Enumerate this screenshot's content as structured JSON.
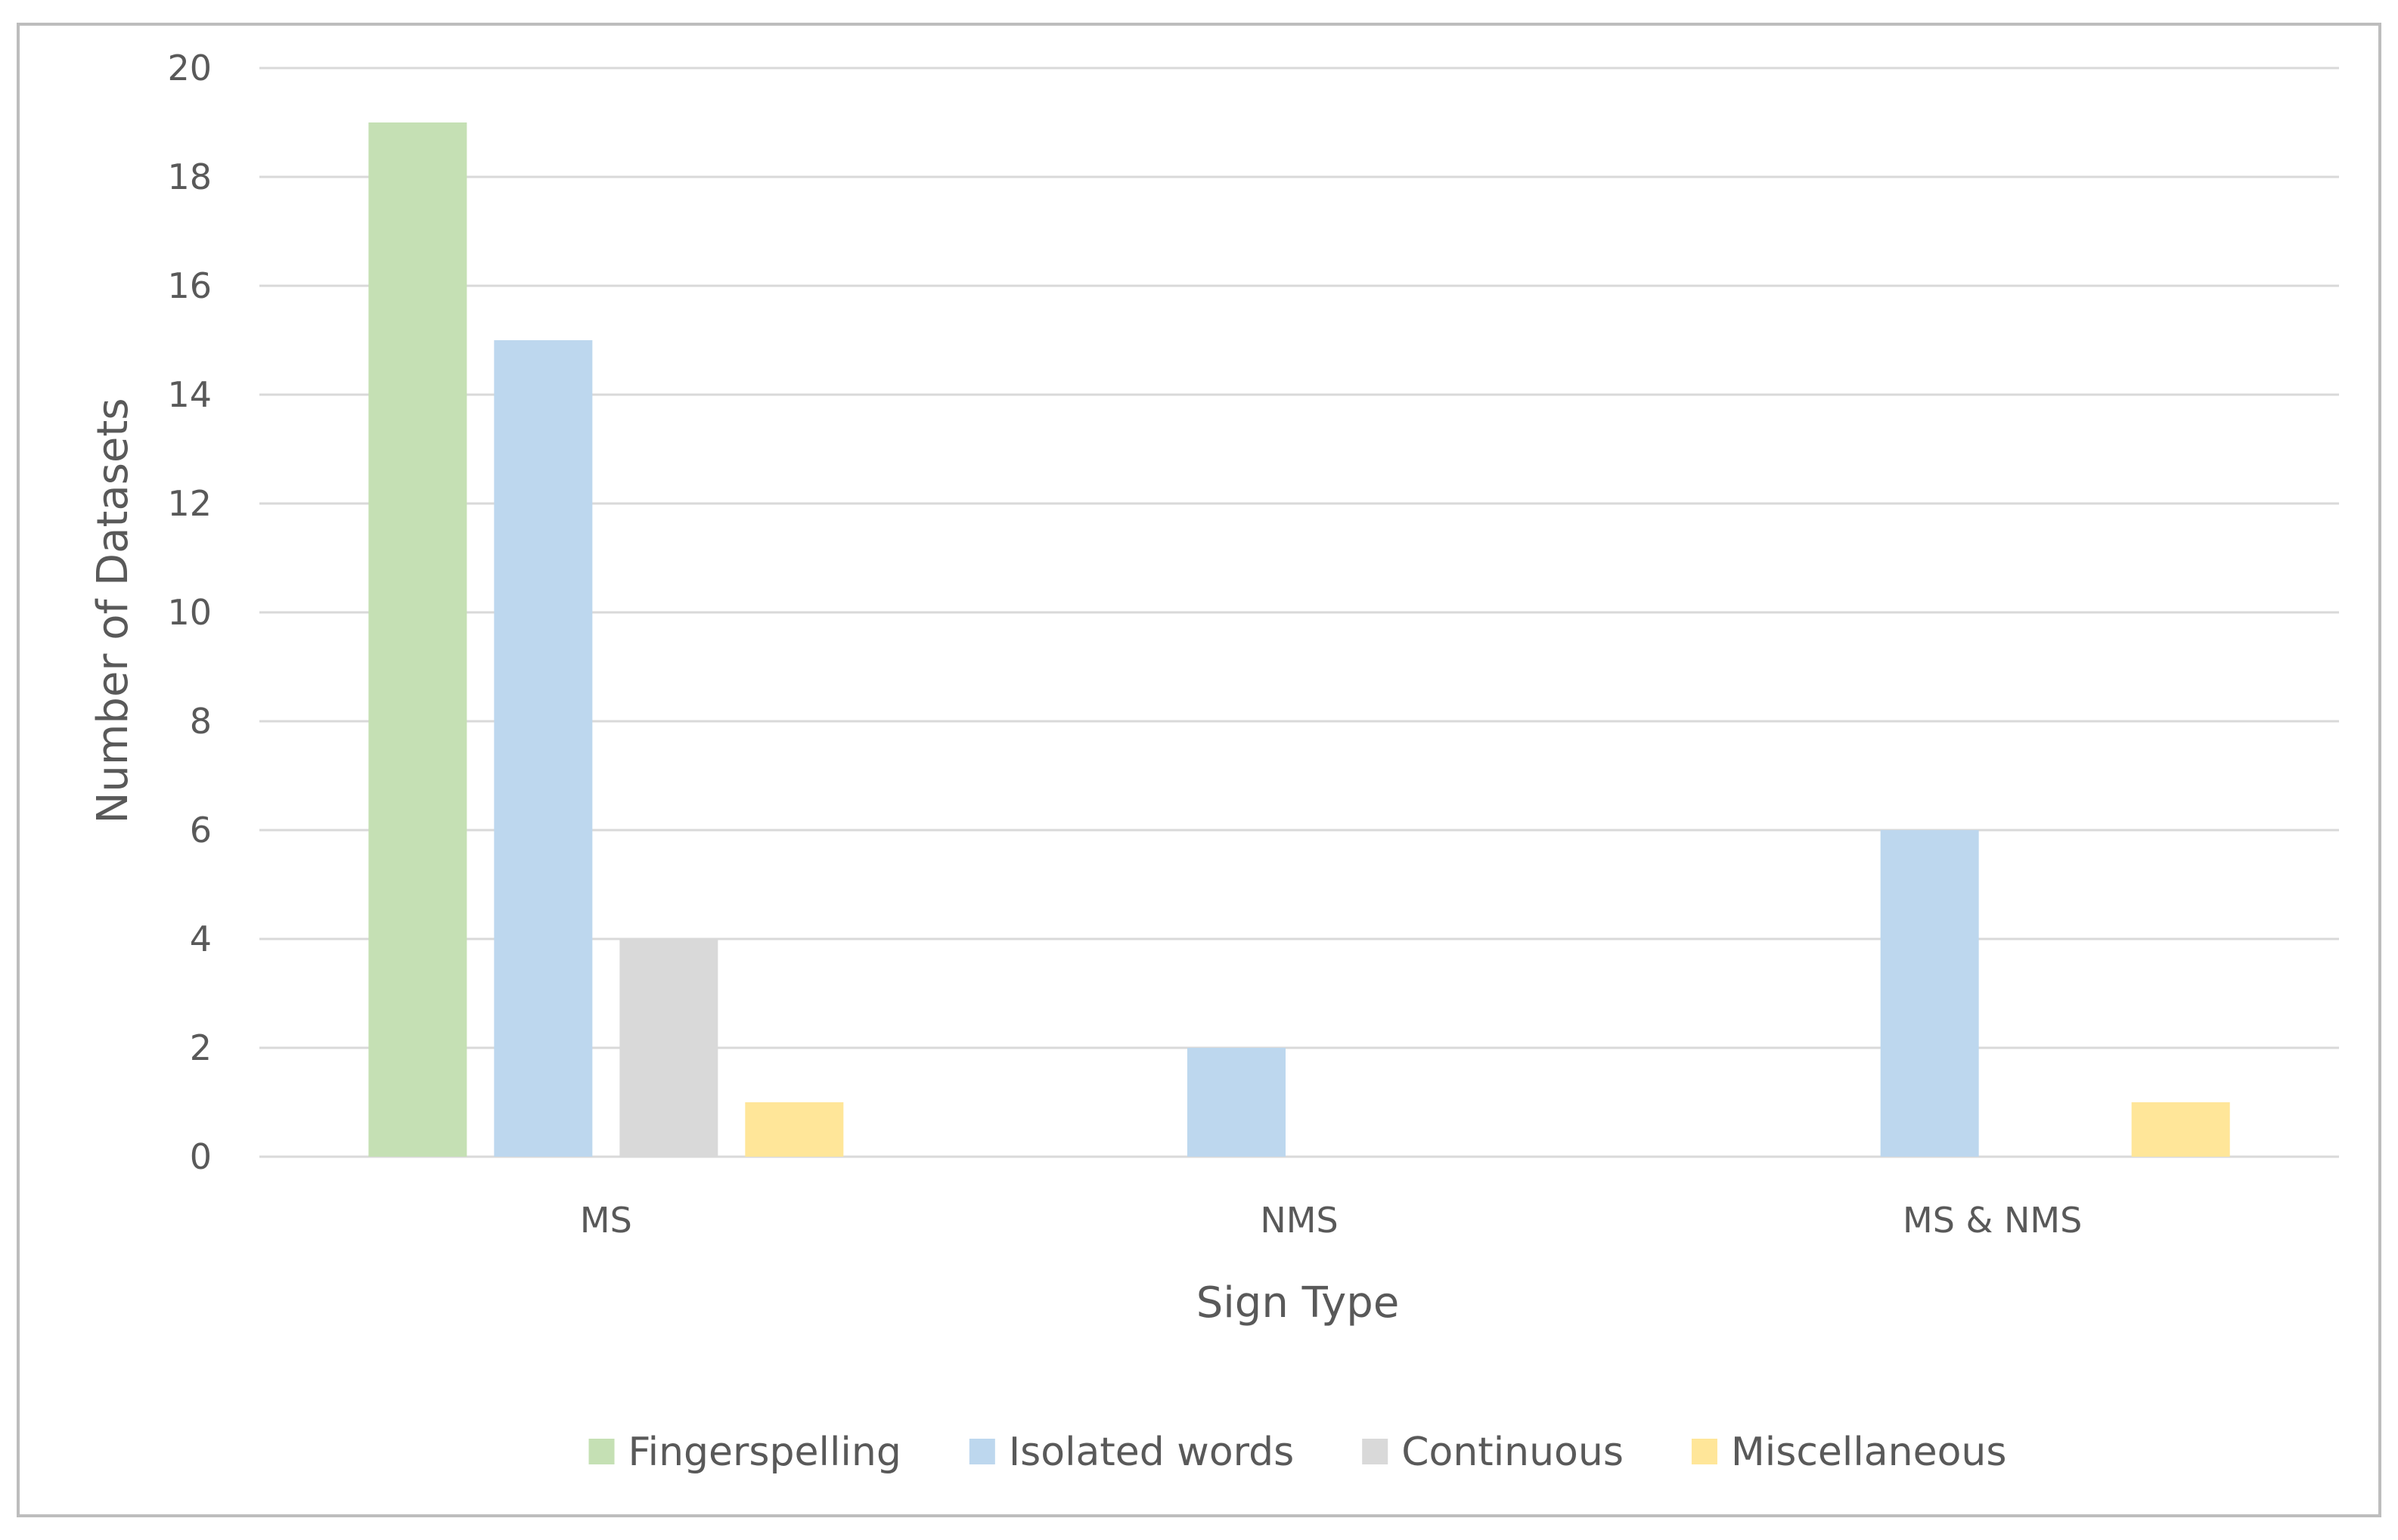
{
  "chart_data": {
    "type": "bar",
    "title": "",
    "xlabel": "Sign Type",
    "ylabel": "Number of Datasets",
    "categories": [
      "MS",
      "NMS",
      "MS & NMS"
    ],
    "series": [
      {
        "name": "Fingerspelling",
        "color": "#c5e0b4",
        "values": [
          19,
          0,
          0
        ]
      },
      {
        "name": "Isolated words",
        "color": "#bdd7ee",
        "values": [
          15,
          2,
          6
        ]
      },
      {
        "name": "Continuous",
        "color": "#d9d9d9",
        "values": [
          4,
          0,
          0
        ]
      },
      {
        "name": "Miscellaneous",
        "color": "#ffe699",
        "values": [
          1,
          0,
          1
        ]
      }
    ],
    "ylim": [
      0,
      20
    ],
    "yticks": [
      0,
      2,
      4,
      6,
      8,
      10,
      12,
      14,
      16,
      18,
      20
    ],
    "grid": true,
    "gridline_color": "#d9d9d9",
    "legend": "bottom"
  }
}
